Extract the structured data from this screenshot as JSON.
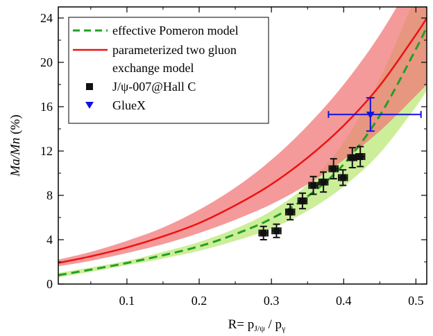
{
  "chart_data": {
    "type": "scatter",
    "xlabel": {
      "main": "R= p",
      "sub1": "J/ψ",
      "mid": " / p",
      "sub2": "γ"
    },
    "ylabel": {
      "main": "Ma/Mn",
      "unit": " (%)"
    },
    "xlim": [
      0.005,
      0.515
    ],
    "ylim": [
      0,
      25
    ],
    "xticks": [
      0.1,
      0.2,
      0.3,
      0.4,
      0.5
    ],
    "yticks": [
      0,
      4,
      8,
      12,
      16,
      20,
      24
    ],
    "grid": false,
    "legend_position": "top-left",
    "legend": [
      {
        "key": "pomeron",
        "text": [
          "effective Pomeron model"
        ]
      },
      {
        "key": "gluon",
        "text": [
          "parameterized two gluon",
          "exchange model"
        ]
      },
      {
        "key": "hallc",
        "text": [
          "J/ψ-007@Hall C"
        ]
      },
      {
        "key": "gluex",
        "text": [
          "GlueX"
        ]
      }
    ],
    "colors": {
      "pomeron_line": "#22a022",
      "pomeron_band": "#ccee99",
      "gluon_line": "#ee1111",
      "gluon_band": "#f07878",
      "hallc": "#111111",
      "gluex": "#1111dd"
    },
    "series": [
      {
        "key": "pomeron",
        "style": "dashed-curve",
        "x": [
          0.005,
          0.05,
          0.1,
          0.15,
          0.2,
          0.25,
          0.3,
          0.35,
          0.4,
          0.45,
          0.5,
          0.515
        ],
        "y": [
          0.8,
          1.3,
          1.9,
          2.6,
          3.4,
          4.5,
          5.9,
          7.9,
          10.8,
          15.2,
          21.2,
          23.2
        ],
        "band_upper": [
          1.0,
          1.5,
          2.1,
          2.9,
          3.8,
          5.0,
          6.6,
          9.0,
          12.8,
          18.5,
          26.0,
          28.0
        ],
        "band_lower": [
          0.6,
          1.1,
          1.7,
          2.3,
          3.0,
          3.9,
          5.0,
          6.6,
          8.8,
          11.8,
          16.0,
          17.5
        ]
      },
      {
        "key": "gluon",
        "style": "solid-curve",
        "x": [
          0.005,
          0.05,
          0.1,
          0.15,
          0.2,
          0.25,
          0.3,
          0.35,
          0.4,
          0.45,
          0.5,
          0.515
        ],
        "y": [
          1.9,
          2.5,
          3.3,
          4.3,
          5.5,
          7.1,
          9.0,
          11.4,
          14.3,
          17.9,
          22.5,
          24.0
        ],
        "band_upper": [
          2.2,
          2.9,
          3.9,
          5.1,
          6.7,
          8.7,
          11.2,
          14.3,
          18.0,
          22.5,
          28.0,
          30.0
        ],
        "band_lower": [
          1.6,
          2.1,
          2.8,
          3.6,
          4.6,
          5.8,
          7.2,
          9.0,
          11.2,
          13.8,
          17.0,
          18.0
        ]
      },
      {
        "key": "hallc",
        "style": "points",
        "x": [
          0.289,
          0.307,
          0.326,
          0.343,
          0.358,
          0.372,
          0.386,
          0.399,
          0.412,
          0.423
        ],
        "y": [
          4.6,
          4.8,
          6.5,
          7.5,
          8.9,
          9.2,
          10.4,
          9.6,
          11.4,
          11.5
        ],
        "xerr": [
          0.006,
          0.006,
          0.006,
          0.006,
          0.006,
          0.006,
          0.006,
          0.006,
          0.006,
          0.006
        ],
        "yerr": [
          0.6,
          0.6,
          0.7,
          0.7,
          0.8,
          0.9,
          0.9,
          0.7,
          0.9,
          0.9
        ]
      },
      {
        "key": "gluex",
        "style": "points",
        "x": [
          0.437
        ],
        "y": [
          15.3
        ],
        "xerr_low": [
          0.058
        ],
        "xerr_high": [
          0.07
        ],
        "yerr": [
          1.5
        ]
      }
    ]
  }
}
